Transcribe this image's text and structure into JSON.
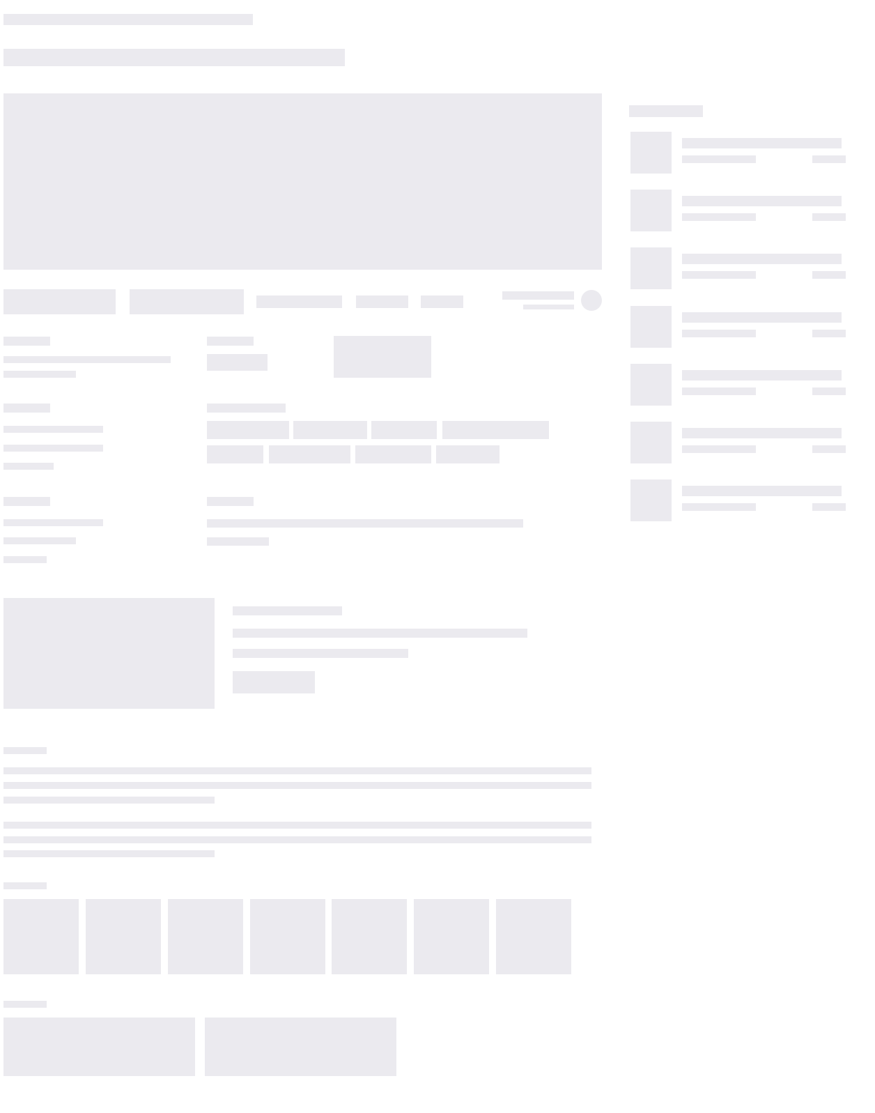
{
  "state": "loading-skeleton",
  "colors": {
    "placeholder": "#ebeaef",
    "background": "#ffffff"
  },
  "sidebar": {
    "item_count": 7
  },
  "gallery": {
    "tile_count": 7
  }
}
